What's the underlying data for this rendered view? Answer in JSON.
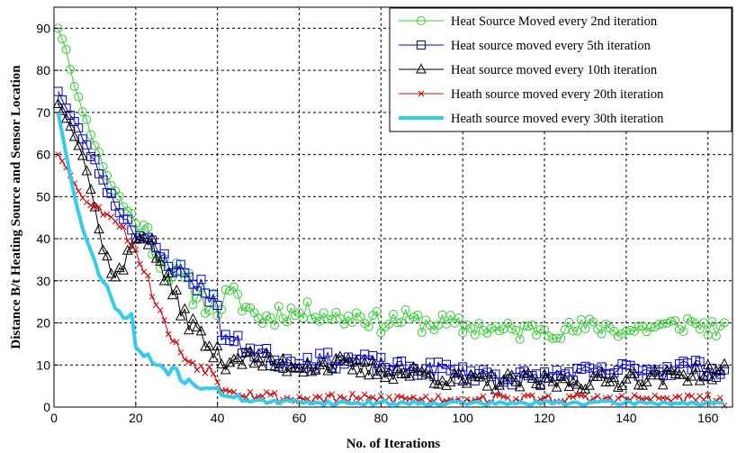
{
  "chart_data": {
    "type": "line",
    "xlabel": "No. of Iterations",
    "ylabel": "Distance  B/t Heating Source and Sensor Location",
    "xlim": [
      0,
      166
    ],
    "ylim": [
      0,
      95
    ],
    "xticks": [
      0,
      20,
      40,
      60,
      80,
      100,
      120,
      140,
      160
    ],
    "yticks": [
      0,
      10,
      20,
      30,
      40,
      50,
      60,
      70,
      80,
      90
    ],
    "grid": true,
    "legend_position": "top-right",
    "series": [
      {
        "name": "Heat Source Moved every 2nd iteration",
        "color": "#33cc33",
        "marker": "circle",
        "line_width": 1,
        "anchors": [
          [
            1,
            90
          ],
          [
            3,
            85
          ],
          [
            5,
            76
          ],
          [
            8,
            68
          ],
          [
            11,
            60
          ],
          [
            14,
            53
          ],
          [
            17,
            48
          ],
          [
            20,
            44
          ],
          [
            23,
            41
          ],
          [
            26,
            36
          ],
          [
            29,
            32
          ],
          [
            32,
            29
          ],
          [
            35,
            27
          ],
          [
            38,
            25
          ],
          [
            40,
            24
          ],
          [
            43,
            26
          ],
          [
            46,
            25
          ],
          [
            49,
            22
          ],
          [
            52,
            21
          ],
          [
            56,
            23
          ],
          [
            60,
            22
          ],
          [
            64,
            23
          ],
          [
            70,
            21
          ],
          [
            75,
            22
          ],
          [
            80,
            20
          ],
          [
            85,
            21
          ],
          [
            90,
            20
          ],
          [
            95,
            20
          ],
          [
            100,
            19
          ],
          [
            105,
            19
          ],
          [
            110,
            18
          ],
          [
            115,
            18
          ],
          [
            120,
            19
          ],
          [
            125,
            18
          ],
          [
            130,
            19
          ],
          [
            135,
            19
          ],
          [
            140,
            18
          ],
          [
            145,
            19
          ],
          [
            150,
            19
          ],
          [
            155,
            20
          ],
          [
            160,
            19
          ],
          [
            164,
            18
          ]
        ],
        "amp_range": [
          [
            1,
            0
          ],
          [
            20,
            2
          ],
          [
            26,
            4
          ],
          [
            40,
            3.5
          ],
          [
            60,
            2.5
          ],
          [
            164,
            2.2
          ]
        ],
        "seed": 11
      },
      {
        "name": "Heat source moved every 5th iteration",
        "color": "#0000cc",
        "marker": "square",
        "line_width": 1,
        "anchors": [
          [
            1,
            75
          ],
          [
            3,
            71
          ],
          [
            6,
            66
          ],
          [
            10,
            58
          ],
          [
            14,
            50
          ],
          [
            18,
            44
          ],
          [
            22,
            40
          ],
          [
            26,
            36
          ],
          [
            30,
            33
          ],
          [
            34,
            30
          ],
          [
            37,
            28
          ],
          [
            39,
            26
          ],
          [
            41,
            18
          ],
          [
            44,
            15
          ],
          [
            48,
            14
          ],
          [
            52,
            12
          ],
          [
            56,
            11
          ],
          [
            60,
            11
          ],
          [
            65,
            11
          ],
          [
            70,
            11
          ],
          [
            75,
            11
          ],
          [
            80,
            10
          ],
          [
            85,
            9
          ],
          [
            90,
            9
          ],
          [
            95,
            9
          ],
          [
            100,
            8
          ],
          [
            105,
            8
          ],
          [
            110,
            7
          ],
          [
            115,
            7
          ],
          [
            120,
            7
          ],
          [
            125,
            8
          ],
          [
            130,
            8
          ],
          [
            135,
            8
          ],
          [
            140,
            9
          ],
          [
            145,
            9
          ],
          [
            150,
            9
          ],
          [
            155,
            10
          ],
          [
            160,
            9
          ],
          [
            164,
            8
          ]
        ],
        "amp_range": [
          [
            1,
            0
          ],
          [
            20,
            2
          ],
          [
            40,
            2.5
          ],
          [
            60,
            2
          ],
          [
            164,
            1.8
          ]
        ],
        "seed": 23
      },
      {
        "name": "Heat source moved every 10th iteration",
        "color": "#000000",
        "marker": "triangle",
        "line_width": 1,
        "anchors": [
          [
            1,
            72
          ],
          [
            4,
            67
          ],
          [
            7,
            60
          ],
          [
            9,
            52
          ],
          [
            11,
            42
          ],
          [
            13,
            35
          ],
          [
            15,
            31
          ],
          [
            17,
            33
          ],
          [
            19,
            38
          ],
          [
            21,
            42
          ],
          [
            23,
            40
          ],
          [
            26,
            34
          ],
          [
            29,
            27
          ],
          [
            32,
            22
          ],
          [
            35,
            18
          ],
          [
            38,
            14
          ],
          [
            41,
            11
          ],
          [
            45,
            12
          ],
          [
            50,
            11
          ],
          [
            55,
            10
          ],
          [
            60,
            10
          ],
          [
            65,
            10
          ],
          [
            70,
            10
          ],
          [
            75,
            9
          ],
          [
            80,
            9
          ],
          [
            85,
            8
          ],
          [
            90,
            8
          ],
          [
            95,
            7
          ],
          [
            100,
            6
          ],
          [
            105,
            6
          ],
          [
            110,
            6
          ],
          [
            115,
            6
          ],
          [
            120,
            6
          ],
          [
            125,
            6
          ],
          [
            130,
            6
          ],
          [
            135,
            6
          ],
          [
            140,
            7
          ],
          [
            145,
            7
          ],
          [
            150,
            7
          ],
          [
            155,
            8
          ],
          [
            160,
            8
          ],
          [
            164,
            9
          ]
        ],
        "amp_range": [
          [
            1,
            0
          ],
          [
            20,
            2.5
          ],
          [
            40,
            2.5
          ],
          [
            60,
            2.2
          ],
          [
            164,
            2
          ]
        ],
        "seed": 37
      },
      {
        "name": "Heath source moved every 20th iteration",
        "color": "#cc0000",
        "marker": "x",
        "line_width": 1,
        "anchors": [
          [
            1,
            60
          ],
          [
            3,
            57
          ],
          [
            5,
            53
          ],
          [
            7,
            50
          ],
          [
            9,
            48
          ],
          [
            11,
            47
          ],
          [
            13,
            46
          ],
          [
            15,
            45
          ],
          [
            17,
            42
          ],
          [
            19,
            39
          ],
          [
            21,
            35
          ],
          [
            23,
            30
          ],
          [
            25,
            25
          ],
          [
            27,
            20
          ],
          [
            29,
            16
          ],
          [
            31,
            13
          ],
          [
            33,
            11
          ],
          [
            35,
            10
          ],
          [
            38,
            9
          ],
          [
            41,
            5
          ],
          [
            44,
            4
          ],
          [
            48,
            3
          ],
          [
            52,
            3
          ],
          [
            56,
            2
          ],
          [
            60,
            2
          ],
          [
            70,
            2
          ],
          [
            80,
            2
          ],
          [
            90,
            2
          ],
          [
            100,
            2
          ],
          [
            110,
            2
          ],
          [
            120,
            2
          ],
          [
            130,
            2
          ],
          [
            140,
            2
          ],
          [
            150,
            2
          ],
          [
            160,
            2
          ],
          [
            164,
            1
          ]
        ],
        "amp_range": [
          [
            1,
            0
          ],
          [
            20,
            1.5
          ],
          [
            40,
            1.2
          ],
          [
            164,
            1
          ]
        ],
        "seed": 53
      },
      {
        "name": "Heath source moved every 30th iteration",
        "color": "#33ccee",
        "marker": "none",
        "line_width": 4,
        "anchors": [
          [
            1,
            70
          ],
          [
            3,
            60
          ],
          [
            5,
            50
          ],
          [
            7,
            42
          ],
          [
            9,
            37
          ],
          [
            11,
            32
          ],
          [
            13,
            28
          ],
          [
            15,
            24
          ],
          [
            17,
            21
          ],
          [
            19,
            22
          ],
          [
            20,
            14
          ],
          [
            22,
            12
          ],
          [
            24,
            11
          ],
          [
            27,
            9
          ],
          [
            30,
            8
          ],
          [
            33,
            6
          ],
          [
            36,
            5
          ],
          [
            39,
            4
          ],
          [
            42,
            3
          ],
          [
            46,
            2
          ],
          [
            50,
            1.5
          ],
          [
            55,
            1
          ],
          [
            60,
            1.5
          ],
          [
            65,
            1
          ],
          [
            70,
            1
          ],
          [
            80,
            1
          ],
          [
            90,
            1
          ],
          [
            100,
            1
          ],
          [
            110,
            0.8
          ],
          [
            120,
            1
          ],
          [
            130,
            1
          ],
          [
            140,
            1
          ],
          [
            150,
            1
          ],
          [
            160,
            0.8
          ],
          [
            164,
            0.5
          ]
        ],
        "amp_range": [
          [
            1,
            0
          ],
          [
            15,
            1
          ],
          [
            30,
            1.2
          ],
          [
            50,
            0.6
          ],
          [
            164,
            0.5
          ]
        ],
        "seed": 71
      }
    ]
  }
}
